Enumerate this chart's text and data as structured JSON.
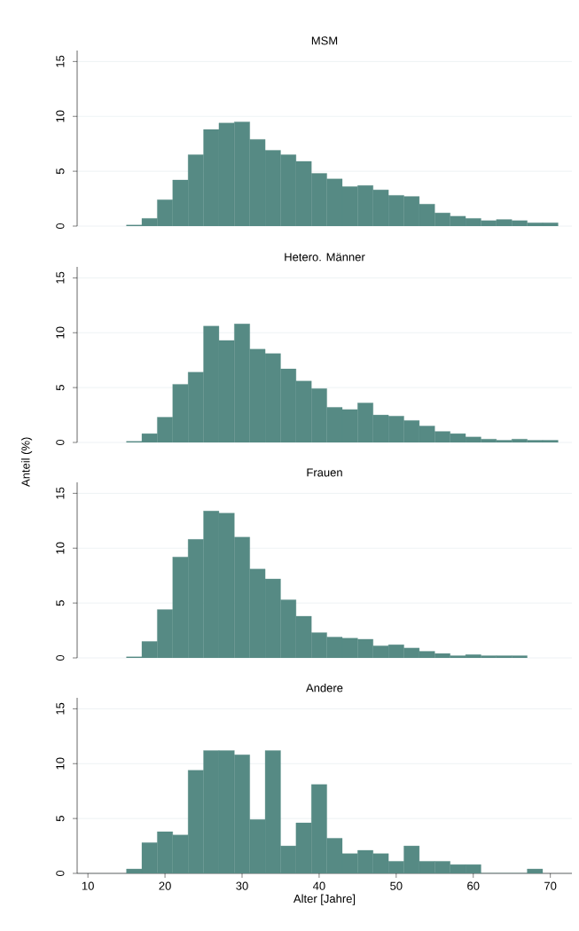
{
  "chart_data": [
    {
      "type": "histogram",
      "title": "MSM",
      "color": "#568a84",
      "grid": "y",
      "tick_labels": "y",
      "xlim": [
        8.6,
        72.8
      ],
      "ylim": [
        0,
        16
      ],
      "yticks": [
        0,
        5,
        10,
        15
      ],
      "bins": [
        15,
        17,
        19,
        21,
        23,
        25,
        27,
        29,
        31,
        33,
        35,
        37,
        39,
        41,
        43,
        45,
        47,
        49,
        51,
        53,
        55,
        57,
        59,
        61,
        63,
        65,
        67,
        69,
        71
      ],
      "values": [
        0.1,
        0.7,
        2.4,
        4.2,
        6.5,
        8.8,
        9.4,
        9.5,
        7.9,
        6.9,
        6.5,
        5.9,
        4.8,
        4.3,
        3.6,
        3.7,
        3.3,
        2.8,
        2.7,
        2.0,
        1.2,
        0.9,
        0.7,
        0.5,
        0.6,
        0.5,
        0.3,
        0.3
      ]
    },
    {
      "type": "histogram",
      "title": "Hetero. Männer",
      "ylabel": "Anteil (%)",
      "color": "#568a84",
      "grid": "y",
      "tick_labels": "y",
      "xlim": [
        8.6,
        72.8
      ],
      "ylim": [
        0,
        16
      ],
      "yticks": [
        0,
        5,
        10,
        15
      ],
      "bins": [
        15,
        17,
        19,
        21,
        23,
        25,
        27,
        29,
        31,
        33,
        35,
        37,
        39,
        41,
        43,
        45,
        47,
        49,
        51,
        53,
        55,
        57,
        59,
        61,
        63,
        65,
        67,
        69,
        71
      ],
      "values": [
        0.1,
        0.8,
        2.3,
        5.3,
        6.4,
        10.6,
        9.3,
        10.8,
        8.5,
        8.1,
        6.7,
        5.6,
        4.9,
        3.2,
        3.0,
        3.6,
        2.5,
        2.4,
        2.0,
        1.5,
        1.0,
        0.8,
        0.5,
        0.3,
        0.2,
        0.3,
        0.2,
        0.2
      ]
    },
    {
      "type": "histogram",
      "title": "Frauen",
      "color": "#568a84",
      "grid": "y",
      "tick_labels": "y",
      "xlim": [
        8.6,
        72.8
      ],
      "ylim": [
        0,
        16
      ],
      "yticks": [
        0,
        5,
        10,
        15
      ],
      "bins": [
        15,
        17,
        19,
        21,
        23,
        25,
        27,
        29,
        31,
        33,
        35,
        37,
        39,
        41,
        43,
        45,
        47,
        49,
        51,
        53,
        55,
        57,
        59,
        61,
        63,
        65,
        67
      ],
      "values": [
        0.1,
        1.5,
        4.4,
        9.2,
        10.8,
        13.4,
        13.2,
        11.0,
        8.1,
        7.2,
        5.3,
        3.8,
        2.3,
        1.9,
        1.8,
        1.7,
        1.1,
        1.2,
        0.9,
        0.6,
        0.4,
        0.2,
        0.3,
        0.2,
        0.2,
        0.2
      ]
    },
    {
      "type": "histogram",
      "title": "Andere",
      "xlabel": "Alter [Jahre]",
      "color": "#568a84",
      "grid": "y",
      "xlim": [
        8.6,
        72.8
      ],
      "ylim": [
        0,
        16
      ],
      "xticks": [
        10,
        20,
        30,
        40,
        50,
        60,
        70
      ],
      "yticks": [
        0,
        5,
        10,
        15
      ],
      "bins": [
        15,
        17,
        19,
        21,
        23,
        25,
        27,
        29,
        31,
        33,
        35,
        37,
        39,
        41,
        43,
        45,
        47,
        49,
        51,
        53,
        55,
        57,
        59,
        61,
        63,
        65,
        67,
        69
      ],
      "values": [
        0.4,
        2.8,
        3.8,
        3.5,
        9.4,
        11.2,
        11.2,
        10.8,
        4.9,
        11.2,
        2.5,
        4.6,
        8.1,
        3.2,
        1.8,
        2.1,
        1.8,
        1.1,
        2.5,
        1.1,
        1.1,
        0.8,
        0.8,
        0,
        0,
        0,
        0.4
      ]
    }
  ]
}
